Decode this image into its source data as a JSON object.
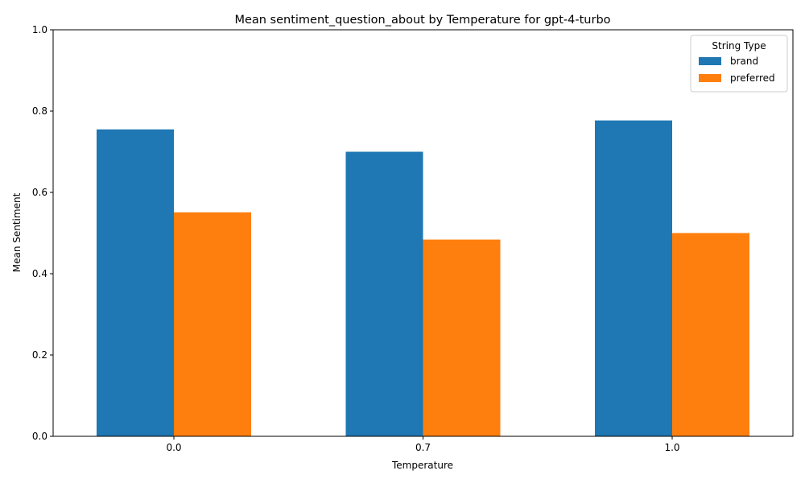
{
  "chart_data": {
    "type": "bar",
    "title": "Mean sentiment_question_about by Temperature for gpt-4-turbo",
    "xlabel": "Temperature",
    "ylabel": "Mean Sentiment",
    "categories": [
      "0.0",
      "0.7",
      "1.0"
    ],
    "series": [
      {
        "name": "brand",
        "values": [
          0.755,
          0.7,
          0.777
        ],
        "color": "#1f77b4"
      },
      {
        "name": "preferred",
        "values": [
          0.551,
          0.484,
          0.5
        ],
        "color": "#ff7f0e"
      }
    ],
    "ylim": [
      0,
      1
    ],
    "yticks": [
      0,
      0.2,
      0.4,
      0.6,
      0.8,
      1.0
    ],
    "ytick_labels": [
      "0.0",
      "0.2",
      "0.4",
      "0.6",
      "0.8",
      "1.0"
    ],
    "grid": false,
    "legend": {
      "title": "String Type",
      "placement": "top-right"
    }
  }
}
